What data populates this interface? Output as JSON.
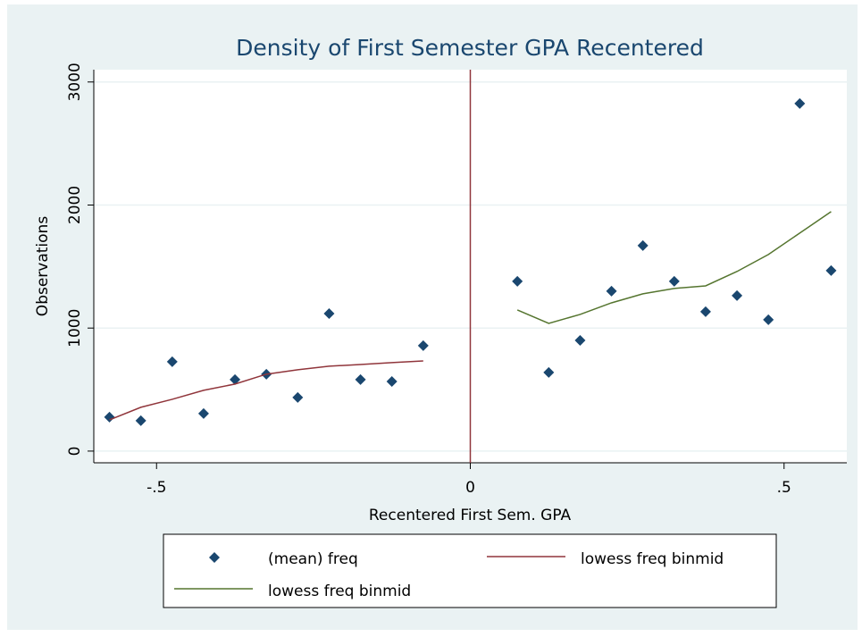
{
  "chart_data": {
    "type": "scatter",
    "title": "Density of First Semester GPA Recentered",
    "x_label": "Recentered First Sem. GPA",
    "y_label": "Observations",
    "xlim": [
      -0.6,
      0.6
    ],
    "ylim": [
      -95,
      3100
    ],
    "xticks": [
      {
        "value": -0.5,
        "label": "-.5"
      },
      0,
      {
        "value": 0.5,
        "label": ".5"
      }
    ],
    "yticks": [
      0,
      1000,
      2000,
      3000
    ],
    "grid": true,
    "vline": {
      "value": 0,
      "color": "#90353b"
    },
    "series": [
      {
        "name": "(mean) freq",
        "type": "scatter",
        "color": "#1a476f",
        "x": [
          -0.575,
          -0.525,
          -0.475,
          -0.425,
          -0.375,
          -0.325,
          -0.275,
          -0.225,
          -0.175,
          -0.125,
          -0.075,
          0.075,
          0.125,
          0.175,
          0.225,
          0.275,
          0.325,
          0.375,
          0.425,
          0.475,
          0.525,
          0.575
        ],
        "values": [
          276,
          247,
          726,
          305,
          581,
          625,
          436,
          1118,
          581,
          566,
          857,
          1380,
          639,
          900,
          1300,
          1670,
          1380,
          1133,
          1264,
          1068,
          2825,
          1467
        ]
      },
      {
        "name": "lowess freq binmid",
        "type": "line",
        "color": "#90353b",
        "x": [
          -0.575,
          -0.525,
          -0.475,
          -0.425,
          -0.375,
          -0.325,
          -0.275,
          -0.225,
          -0.175,
          -0.125,
          -0.075
        ],
        "values": [
          254,
          356,
          421,
          494,
          545,
          625,
          661,
          690,
          704,
          719,
          733
        ]
      },
      {
        "name": "lowess freq binmid",
        "type": "line",
        "color": "#55752f",
        "x": [
          0.075,
          0.125,
          0.175,
          0.225,
          0.275,
          0.325,
          0.375,
          0.425,
          0.475,
          0.525,
          0.575
        ],
        "values": [
          1147,
          1038,
          1111,
          1205,
          1278,
          1322,
          1343,
          1460,
          1598,
          1772,
          1946
        ]
      }
    ]
  }
}
